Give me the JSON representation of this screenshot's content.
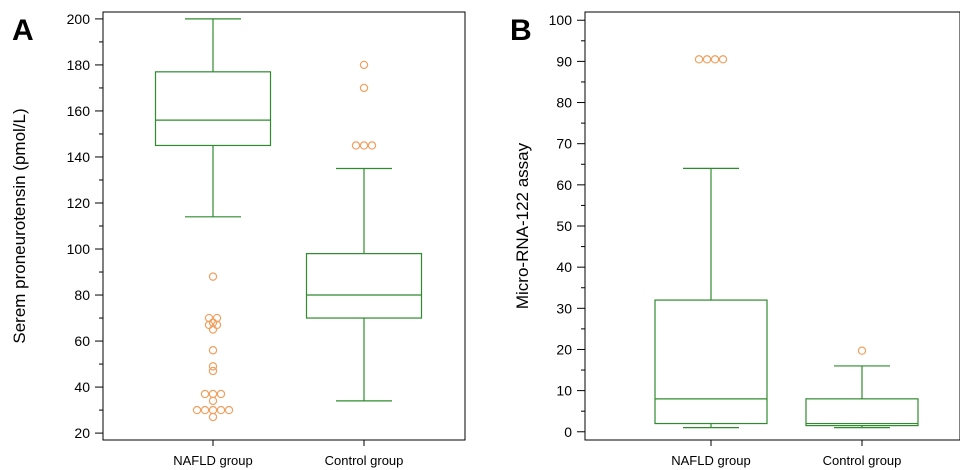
{
  "colors": {
    "box": "#2e8b2e",
    "outlier": "#f0a060",
    "axis": "#000000"
  },
  "chart_data": [
    {
      "type": "boxplot",
      "panel_label": "A",
      "ylabel": "Serem proneurotensin (pmol/L)",
      "ylim": [
        17,
        203
      ],
      "yticks": [
        20,
        40,
        60,
        80,
        100,
        120,
        140,
        160,
        180,
        200
      ],
      "yticks_minor_step": 10,
      "categories": [
        "NAFLD group",
        "Control group"
      ],
      "boxes": [
        {
          "whisker_low": 114,
          "q1": 145,
          "median": 156,
          "q3": 177,
          "whisker_high": 200,
          "outliers": [
            88,
            70,
            70,
            68,
            67,
            67,
            65,
            56,
            49,
            47,
            37,
            37,
            37,
            34,
            30,
            30,
            30,
            30,
            30,
            27
          ]
        },
        {
          "whisker_low": 34,
          "q1": 70,
          "median": 80,
          "q3": 98,
          "whisker_high": 135,
          "outliers": [
            180,
            170,
            145,
            145,
            145
          ]
        }
      ]
    },
    {
      "type": "boxplot",
      "panel_label": "B",
      "ylabel": "Micro-RNA-122 assay",
      "ylim": [
        -2,
        102
      ],
      "yticks": [
        0,
        10,
        20,
        30,
        40,
        50,
        60,
        70,
        80,
        90,
        100
      ],
      "yticks_minor_step": 5,
      "categories": [
        "NAFLD group",
        "Control group"
      ],
      "boxes": [
        {
          "whisker_low": 1,
          "q1": 2,
          "median": 8,
          "q3": 32,
          "whisker_high": 64,
          "outliers": [
            90.5,
            90.5,
            90.5,
            90.5
          ]
        },
        {
          "whisker_low": 1,
          "q1": 1.5,
          "median": 2,
          "q3": 8,
          "whisker_high": 16,
          "outliers": [
            19.7
          ]
        }
      ]
    }
  ]
}
